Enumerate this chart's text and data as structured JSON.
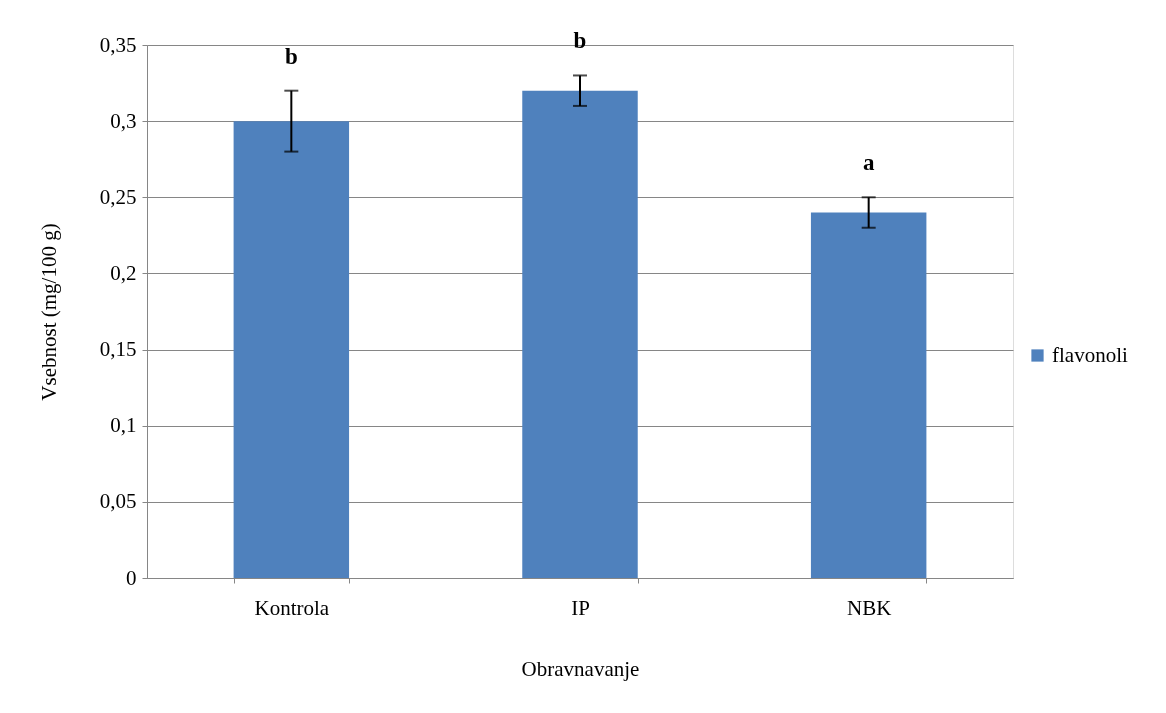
{
  "chart_data": {
    "type": "bar",
    "xlabel": "Obravnavanje",
    "ylabel": "Vsebnost (mg/100 g)",
    "categories": [
      "Kontrola",
      "IP",
      "NBK"
    ],
    "series": [
      {
        "name": "flavonoli",
        "color": "#4f81bd",
        "values": [
          0.3,
          0.32,
          0.24
        ],
        "errors": [
          0.02,
          0.01,
          0.01
        ]
      }
    ],
    "ylim": [
      0,
      0.35
    ],
    "yticks": [
      {
        "value": 0,
        "label": "0"
      },
      {
        "value": 0.05,
        "label": "0,05"
      },
      {
        "value": 0.1,
        "label": "0,1"
      },
      {
        "value": 0.15,
        "label": "0,15"
      },
      {
        "value": 0.2,
        "label": "0,2"
      },
      {
        "value": 0.25,
        "label": "0,25"
      },
      {
        "value": 0.3,
        "label": "0,3"
      },
      {
        "value": 0.35,
        "label": "0,35"
      }
    ],
    "annotations": [
      "b",
      "b",
      "a"
    ],
    "grid": "y",
    "legend": "right"
  }
}
